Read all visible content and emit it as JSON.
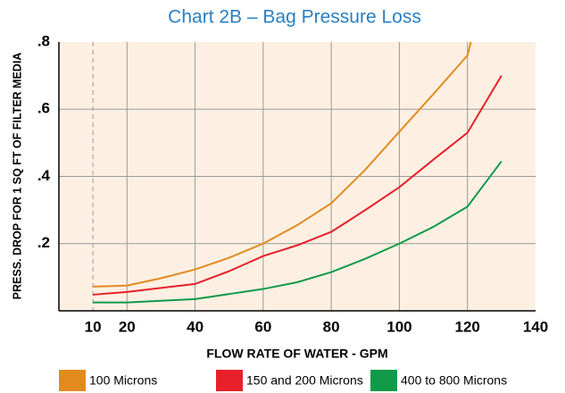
{
  "chart_data": {
    "type": "line",
    "title": "Chart 2B – Bag Pressure Loss",
    "x_label": "FLOW RATE OF WATER - GPM",
    "y_label": "PRESS. DROP FOR 1 SQ FT OF FILTER MEDIA",
    "xlim": [
      0,
      140
    ],
    "ylim": [
      0,
      0.8
    ],
    "xticks": [
      10,
      20,
      40,
      60,
      80,
      100,
      120,
      140
    ],
    "yticks": [
      {
        "value": 0.2,
        "label": ".2"
      },
      {
        "value": 0.4,
        "label": ".4"
      },
      {
        "value": 0.6,
        "label": ".6"
      },
      {
        "value": 0.8,
        "label": ".8"
      }
    ],
    "grid": true,
    "series": [
      {
        "name": "100 Microns",
        "color": "#e38a1f",
        "x": [
          10,
          20,
          30,
          40,
          50,
          60,
          70,
          80,
          90,
          100,
          110,
          120,
          121
        ],
        "values": [
          0.072,
          0.075,
          0.097,
          0.123,
          0.158,
          0.2,
          0.255,
          0.32,
          0.42,
          0.533,
          0.645,
          0.76,
          0.8
        ]
      },
      {
        "name": "150 and 200 Microns",
        "color": "#e8202a",
        "x": [
          10,
          20,
          30,
          40,
          50,
          60,
          70,
          80,
          90,
          100,
          110,
          120,
          130
        ],
        "values": [
          0.048,
          0.056,
          0.068,
          0.08,
          0.118,
          0.163,
          0.195,
          0.235,
          0.3,
          0.368,
          0.45,
          0.53,
          0.7
        ]
      },
      {
        "name": "400 to 800 Microns",
        "color": "#109a48",
        "x": [
          10,
          20,
          30,
          40,
          50,
          60,
          70,
          80,
          90,
          100,
          110,
          120,
          130
        ],
        "values": [
          0.025,
          0.025,
          0.03,
          0.035,
          0.05,
          0.065,
          0.085,
          0.115,
          0.155,
          0.2,
          0.25,
          0.31,
          0.445
        ]
      }
    ]
  }
}
